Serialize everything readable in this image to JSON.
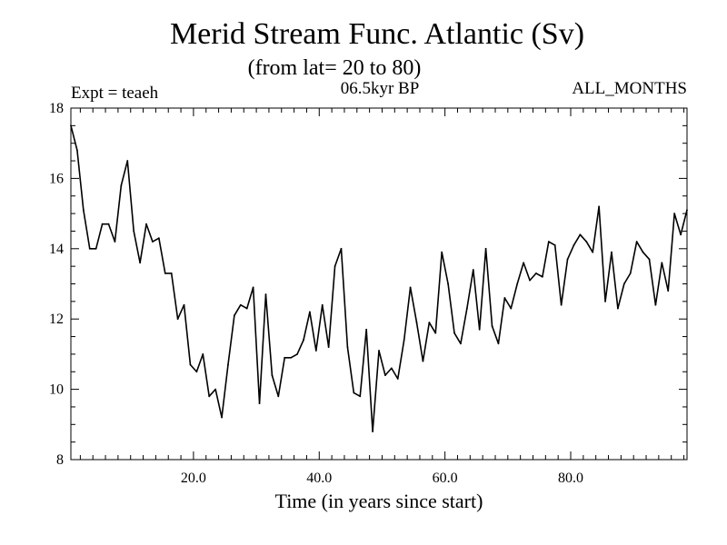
{
  "chart_data": {
    "type": "line",
    "title": "Merid Stream Func. Atlantic (Sv)",
    "subtitle": "(from lat= 20 to 80)",
    "experiment_label": "Expt = teaeh",
    "period_label": "06.5kyr BP",
    "season_label": "ALL_MONTHS",
    "xlabel": "Time (in years since start)",
    "ylabel": "",
    "xlim": [
      0.5,
      98.5
    ],
    "ylim": [
      8,
      18
    ],
    "xticks": [
      20,
      40,
      60,
      80
    ],
    "xtick_labels": [
      "20.0",
      "40.0",
      "60.0",
      "80.0"
    ],
    "yticks": [
      8,
      10,
      12,
      14,
      16,
      18
    ],
    "ytick_labels": [
      "8",
      "10",
      "12",
      "14",
      "16",
      "18"
    ],
    "grid": false,
    "series": [
      {
        "name": "Merid Stream Func. Atlantic",
        "x_start": 0.5,
        "x_step": 1,
        "values": [
          17.5,
          16.8,
          15.1,
          14.0,
          14.0,
          14.7,
          14.7,
          14.2,
          15.8,
          16.5,
          14.5,
          13.6,
          14.7,
          14.2,
          14.3,
          13.3,
          13.3,
          12.0,
          12.4,
          10.7,
          10.5,
          11.0,
          9.8,
          10.0,
          9.2,
          10.7,
          12.1,
          12.4,
          12.3,
          12.9,
          9.6,
          12.7,
          10.4,
          9.8,
          10.9,
          10.9,
          11.0,
          11.4,
          12.2,
          11.1,
          12.4,
          11.2,
          13.5,
          14.0,
          11.2,
          9.9,
          9.8,
          11.7,
          8.8,
          11.1,
          10.4,
          10.6,
          10.3,
          11.4,
          12.9,
          11.9,
          10.8,
          11.9,
          11.6,
          13.9,
          13.0,
          11.6,
          11.3,
          12.3,
          13.4,
          11.7,
          14.0,
          11.8,
          11.3,
          12.6,
          12.3,
          13.0,
          13.6,
          13.1,
          13.3,
          13.2,
          14.2,
          14.1,
          12.4,
          13.7,
          14.1,
          14.4,
          14.2,
          13.9,
          15.2,
          12.5,
          13.9,
          12.3,
          13.0,
          13.3,
          14.2,
          13.9,
          13.7,
          12.4,
          13.6,
          12.8,
          15.0,
          14.4,
          15.1
        ]
      }
    ]
  }
}
